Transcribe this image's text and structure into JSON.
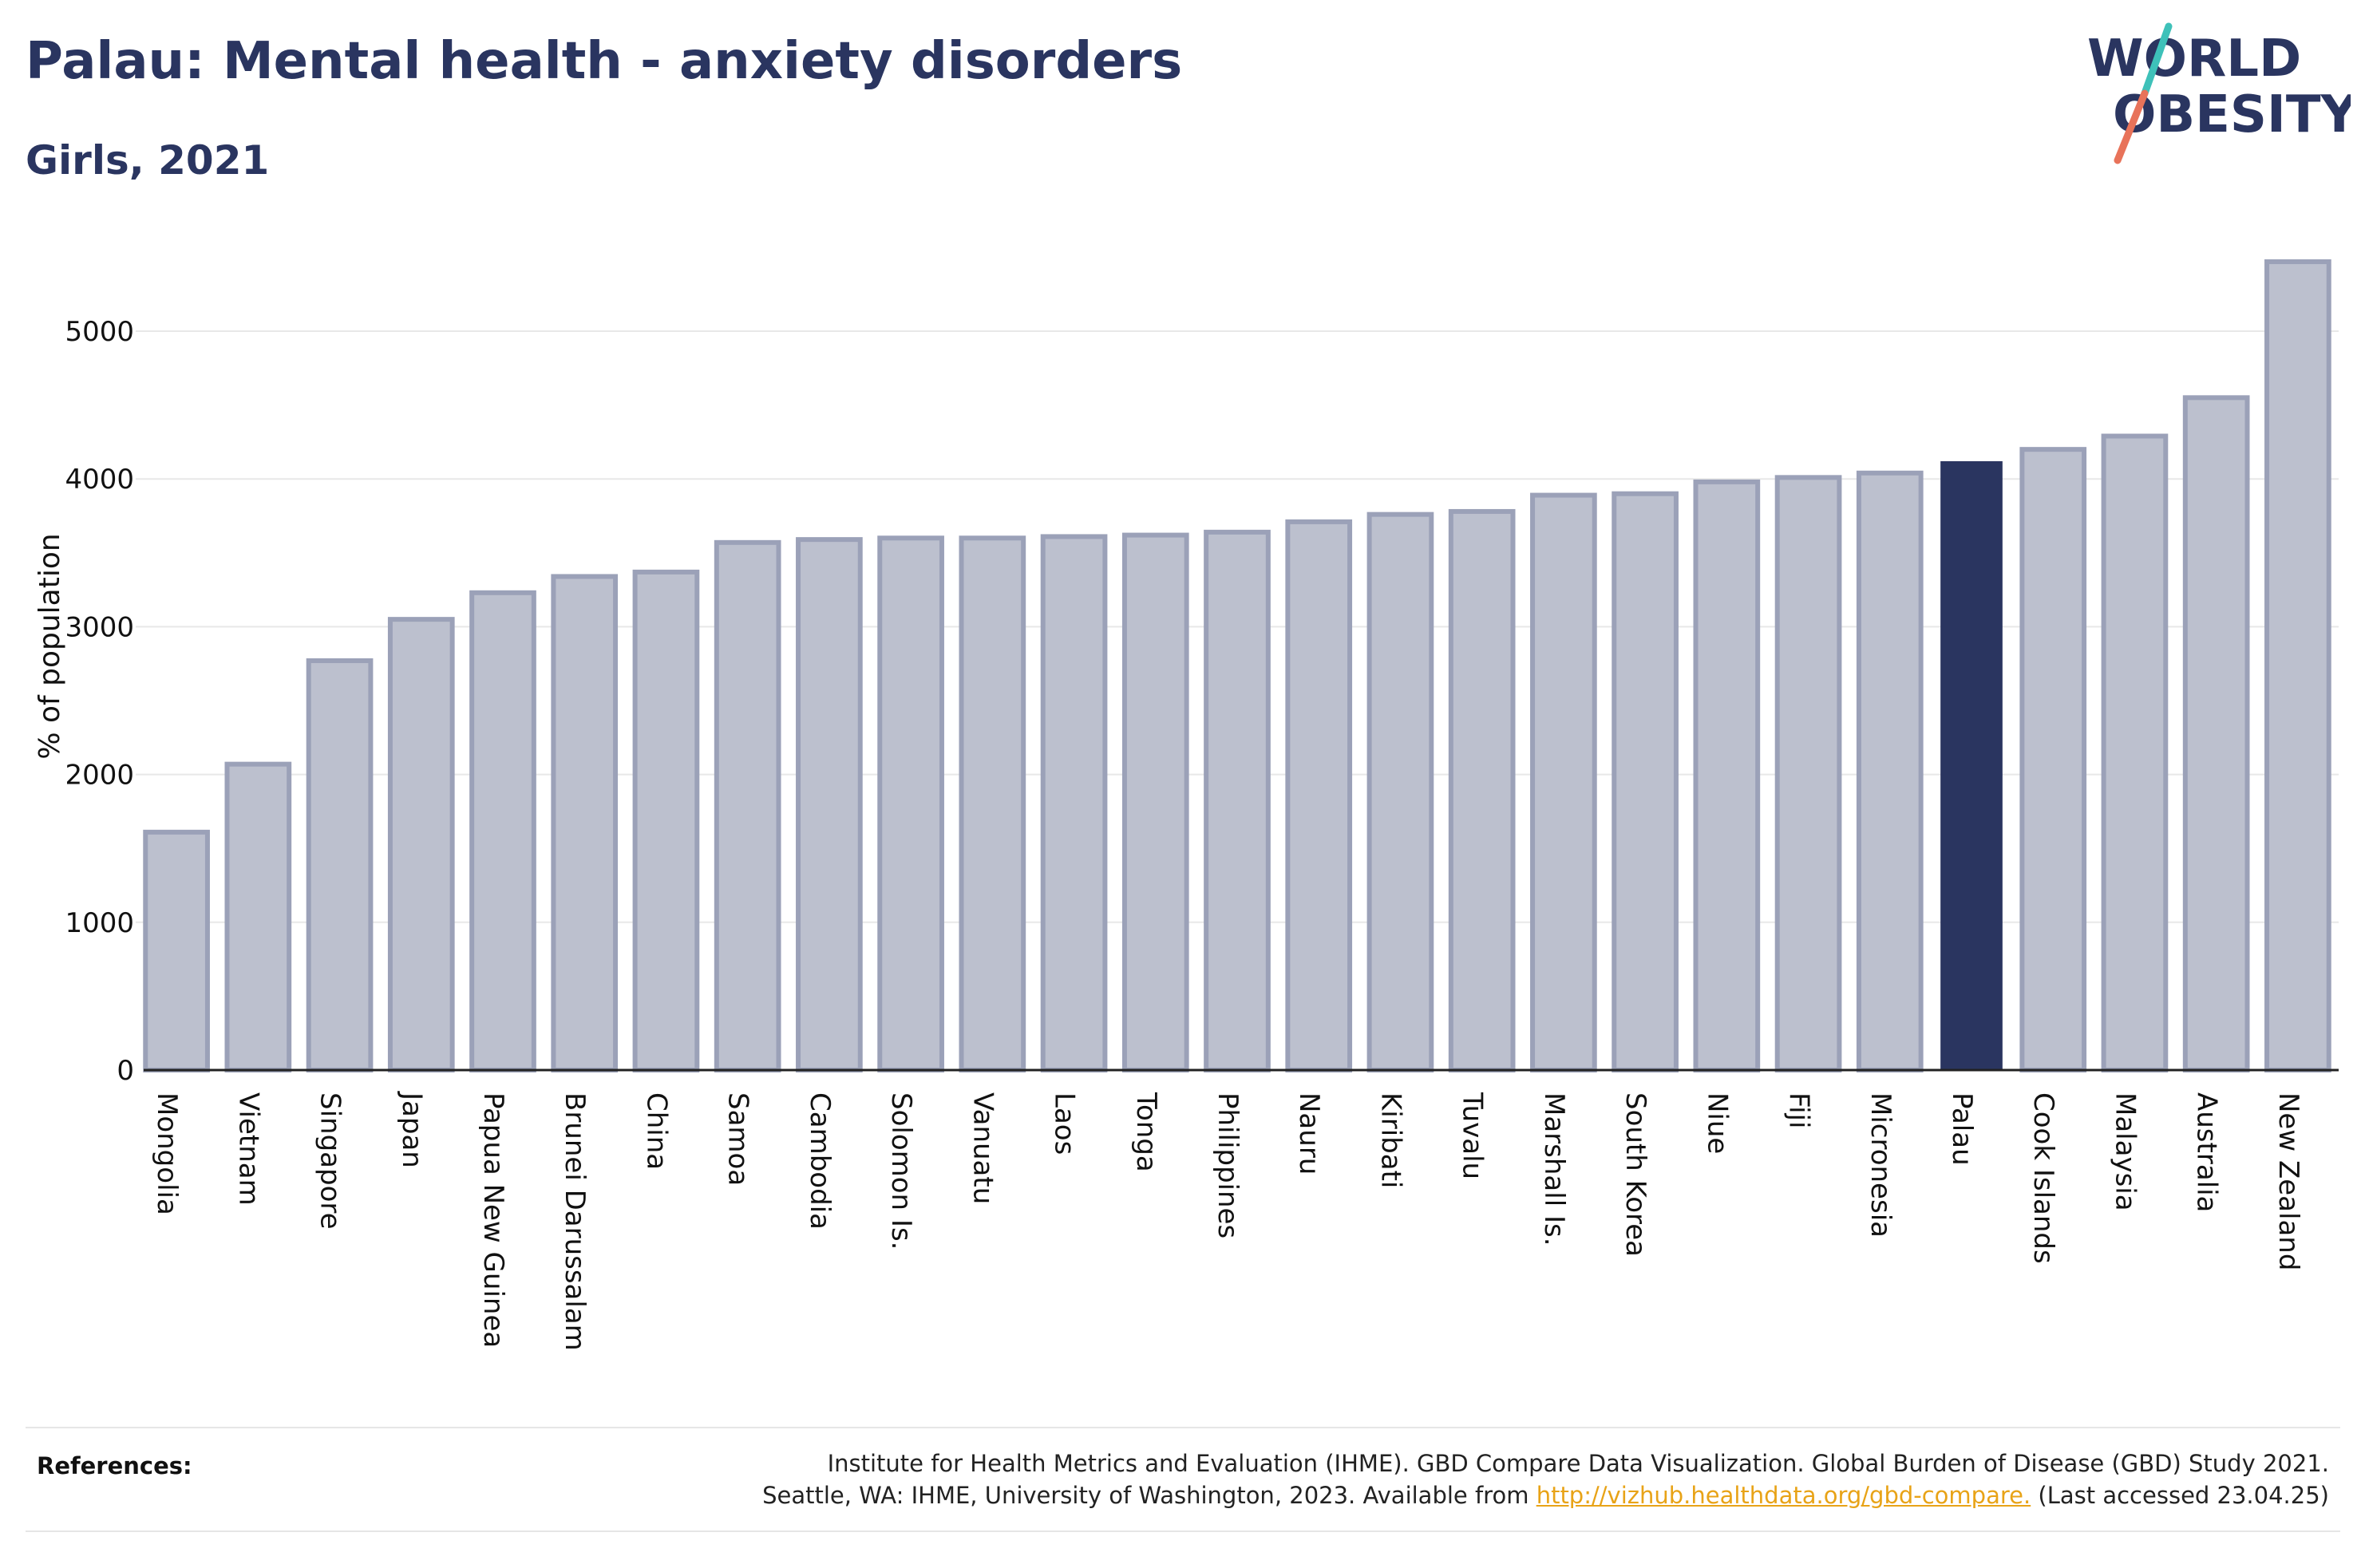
{
  "title": "Palau: Mental health - anxiety disorders",
  "subtitle": "Girls, 2021",
  "logo": {
    "line1": "WORLD",
    "line2": "OBESITY",
    "slash_colors": [
      "#3ec1b9",
      "#e8735a"
    ]
  },
  "colors": {
    "bar": "#bcc0ce",
    "bar_border": "#9ba1b8",
    "highlight": "#2a3560",
    "text": "#2a3560",
    "grid": "#e8e8e8",
    "link": "#e8a317"
  },
  "chart_data": {
    "type": "bar",
    "title": "Palau: Mental health - anxiety disorders",
    "subtitle": "Girls, 2021",
    "ylabel": "% of population",
    "xlabel": "",
    "ylim": [
      0,
      5500
    ],
    "yticks": [
      0,
      1000,
      2000,
      3000,
      4000,
      5000
    ],
    "grid": true,
    "highlight": "Palau",
    "categories": [
      "Mongolia",
      "Vietnam",
      "Singapore",
      "Japan",
      "Papua New Guinea",
      "Brunei Darussalam",
      "China",
      "Samoa",
      "Cambodia",
      "Solomon Is.",
      "Vanuatu",
      "Laos",
      "Tonga",
      "Philippines",
      "Nauru",
      "Kiribati",
      "Tuvalu",
      "Marshall Is.",
      "South Korea",
      "Niue",
      "Fiji",
      "Micronesia",
      "Palau",
      "Cook Islands",
      "Malaysia",
      "Australia",
      "New Zealand"
    ],
    "values": [
      1610,
      2070,
      2770,
      3050,
      3230,
      3340,
      3370,
      3570,
      3590,
      3600,
      3600,
      3610,
      3620,
      3640,
      3710,
      3760,
      3780,
      3890,
      3900,
      3980,
      4010,
      4040,
      4120,
      4200,
      4290,
      4550,
      5470
    ]
  },
  "references": {
    "label": "References:",
    "line1": "Institute for Health Metrics and Evaluation (IHME). GBD Compare Data Visualization. Global Burden of Disease (GBD) Study 2021.",
    "line2_prefix": "Seattle, WA: IHME, University of Washington, 2023. Available from ",
    "link": "http://vizhub.healthdata.org/gbd-compare.",
    "line2_suffix": " (Last accessed 23.04.25)"
  }
}
